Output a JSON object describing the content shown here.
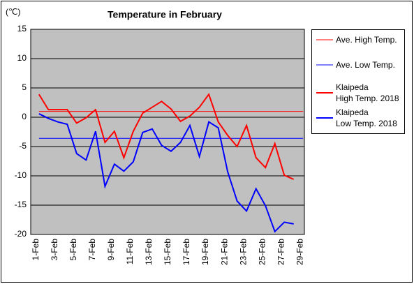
{
  "chart_data": {
    "type": "line",
    "title": "Temperature in February",
    "y_unit": "(℃)",
    "categories": [
      "1-Feb",
      null,
      "3-Feb",
      null,
      "5-Feb",
      null,
      "7-Feb",
      null,
      "9-Feb",
      null,
      "11-Feb",
      null,
      "13-Feb",
      null,
      "15-Feb",
      null,
      "17-Feb",
      null,
      "19-Feb",
      null,
      "21-Feb",
      null,
      "23-Feb",
      null,
      "25-Feb",
      null,
      "27-Feb",
      null,
      "29-Feb"
    ],
    "series": [
      {
        "name": "Ave. High Temp.",
        "color": "#ff0000",
        "width": 1,
        "values": [
          1.0,
          1.0,
          1.0,
          1.0,
          1.0,
          1.0,
          1.0,
          1.0,
          1.0,
          1.0,
          1.0,
          1.0,
          1.0,
          1.0,
          1.0,
          1.0,
          1.0,
          1.0,
          1.0,
          1.0,
          1.0,
          1.0,
          1.0,
          1.0,
          1.0,
          1.0,
          1.0,
          1.0,
          1.0
        ]
      },
      {
        "name": "Ave. Low Temp.",
        "color": "#0000ff",
        "width": 1,
        "values": [
          -3.6,
          -3.6,
          -3.6,
          -3.6,
          -3.6,
          -3.6,
          -3.6,
          -3.6,
          -3.6,
          -3.6,
          -3.6,
          -3.6,
          -3.6,
          -3.6,
          -3.6,
          -3.6,
          -3.6,
          -3.6,
          -3.6,
          -3.6,
          -3.6,
          -3.6,
          -3.6,
          -3.6,
          -3.6,
          -3.6,
          -3.6,
          -3.6,
          -3.6
        ]
      },
      {
        "name": "Klaipeda\nHigh Temp. 2018",
        "color": "#ff0000",
        "width": 2,
        "values": [
          3.9,
          1.3,
          1.3,
          1.3,
          -1.0,
          -0.1,
          1.3,
          -4.3,
          -2.4,
          -6.9,
          -2.4,
          0.7,
          1.7,
          2.7,
          1.4,
          -0.7,
          0.2,
          1.7,
          3.9,
          -0.8,
          -3.1,
          -5.0,
          -1.4,
          -6.9,
          -8.6,
          -4.5,
          -9.9,
          -10.6,
          null
        ]
      },
      {
        "name": "Klaipeda\nLow Temp. 2018",
        "color": "#0000ff",
        "width": 2,
        "values": [
          0.6,
          -0.2,
          -0.8,
          -1.2,
          -6.2,
          -7.3,
          -2.4,
          -11.8,
          -8.0,
          -9.2,
          -7.6,
          -2.6,
          -2.0,
          -4.8,
          -5.8,
          -4.3,
          -1.4,
          -6.7,
          -0.8,
          -1.8,
          -9.3,
          -14.3,
          -16.0,
          -12.2,
          -15.1,
          -19.5,
          -17.9,
          -18.2,
          null
        ]
      }
    ],
    "ylim": [
      -20,
      15
    ],
    "yticks": [
      15,
      10,
      5,
      0,
      -5,
      -10,
      -15,
      -20
    ],
    "grid": true,
    "plot_background": "#c0c0c0"
  }
}
